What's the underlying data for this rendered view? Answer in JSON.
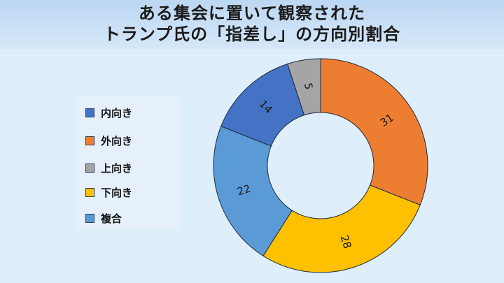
{
  "title": {
    "line1": "ある集会に置いて観察された",
    "line2": "トランプ氏の「指差し」の方向別割合"
  },
  "chart_data": {
    "type": "pie",
    "variant": "donut",
    "legend_position": "left",
    "slices": [
      {
        "label": "外向き",
        "value": 31,
        "color": "#ed7d31"
      },
      {
        "label": "下向き",
        "value": 28,
        "color": "#ffc000"
      },
      {
        "label": "複合",
        "value": 22,
        "color": "#5b9bd5"
      },
      {
        "label": "内向き",
        "value": 14,
        "color": "#4472c4"
      },
      {
        "label": "上向き",
        "value": 5,
        "color": "#a5a5a5"
      }
    ],
    "legend_order": [
      "内向き",
      "外向き",
      "上向き",
      "下向き",
      "複合"
    ]
  }
}
